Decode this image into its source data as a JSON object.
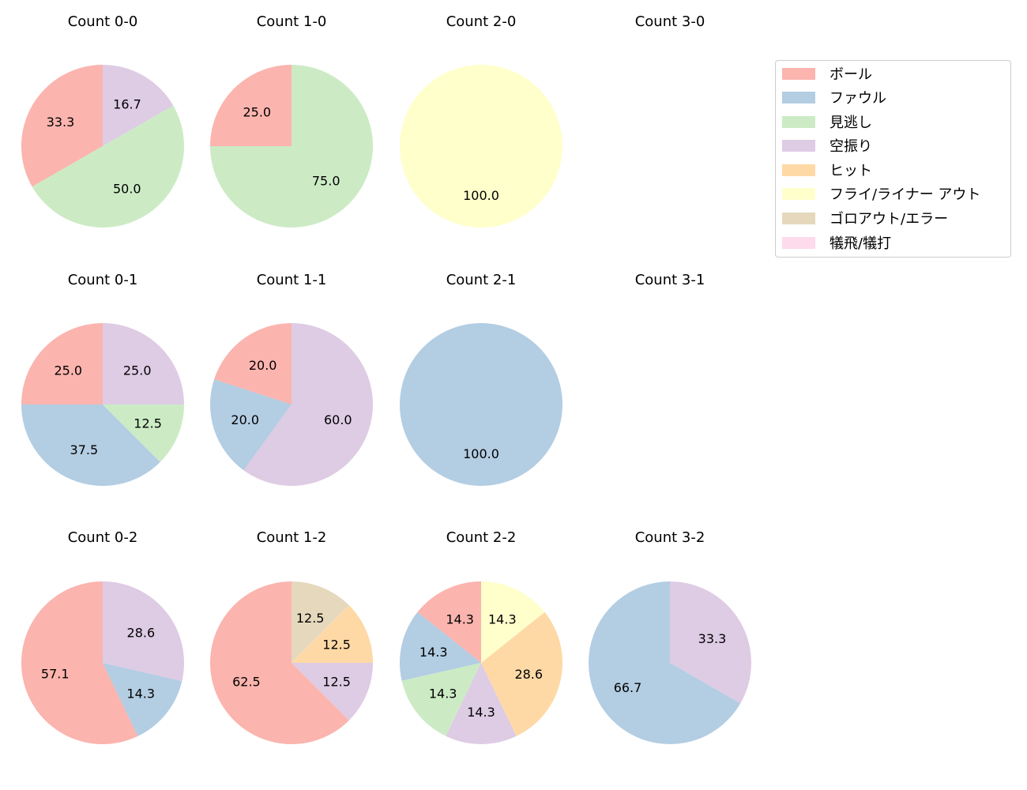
{
  "chart_data": {
    "type": "pie",
    "categories": [
      "ボール",
      "ファウル",
      "見逃し",
      "空振り",
      "ヒット",
      "フライ/ライナー アウト",
      "ゴロアウト/エラー",
      "犠飛/犠打"
    ],
    "colors": [
      "#fbb4ae",
      "#b3cde3",
      "#ccebc5",
      "#decbe4",
      "#fed9a6",
      "#ffffcc",
      "#e5d8bd",
      "#fddaec"
    ],
    "legend_position": "upper right",
    "charts": [
      {
        "title": "Count 0-0",
        "row": 0,
        "col": 0,
        "slices": [
          {
            "category": "ボール",
            "value": 33.3
          },
          {
            "category": "見逃し",
            "value": 50.0
          },
          {
            "category": "空振り",
            "value": 16.7
          }
        ]
      },
      {
        "title": "Count 1-0",
        "row": 0,
        "col": 1,
        "slices": [
          {
            "category": "ボール",
            "value": 25.0
          },
          {
            "category": "見逃し",
            "value": 75.0
          }
        ]
      },
      {
        "title": "Count 2-0",
        "row": 0,
        "col": 2,
        "slices": [
          {
            "category": "フライ/ライナー アウト",
            "value": 100.0
          }
        ]
      },
      {
        "title": "Count 3-0",
        "row": 0,
        "col": 3,
        "slices": []
      },
      {
        "title": "Count 0-1",
        "row": 1,
        "col": 0,
        "slices": [
          {
            "category": "ボール",
            "value": 25.0
          },
          {
            "category": "ファウル",
            "value": 37.5
          },
          {
            "category": "見逃し",
            "value": 12.5
          },
          {
            "category": "空振り",
            "value": 25.0
          }
        ]
      },
      {
        "title": "Count 1-1",
        "row": 1,
        "col": 1,
        "slices": [
          {
            "category": "ボール",
            "value": 20.0
          },
          {
            "category": "ファウル",
            "value": 20.0
          },
          {
            "category": "空振り",
            "value": 60.0
          }
        ]
      },
      {
        "title": "Count 2-1",
        "row": 1,
        "col": 2,
        "slices": [
          {
            "category": "ファウル",
            "value": 100.0
          }
        ]
      },
      {
        "title": "Count 3-1",
        "row": 1,
        "col": 3,
        "slices": []
      },
      {
        "title": "Count 0-2",
        "row": 2,
        "col": 0,
        "slices": [
          {
            "category": "ボール",
            "value": 57.1
          },
          {
            "category": "ファウル",
            "value": 14.3
          },
          {
            "category": "空振り",
            "value": 28.6
          }
        ]
      },
      {
        "title": "Count 1-2",
        "row": 2,
        "col": 1,
        "slices": [
          {
            "category": "ボール",
            "value": 62.5
          },
          {
            "category": "空振り",
            "value": 12.5
          },
          {
            "category": "ヒット",
            "value": 12.5
          },
          {
            "category": "ゴロアウト/エラー",
            "value": 12.5
          }
        ]
      },
      {
        "title": "Count 2-2",
        "row": 2,
        "col": 2,
        "slices": [
          {
            "category": "ボール",
            "value": 14.3
          },
          {
            "category": "ファウル",
            "value": 14.3
          },
          {
            "category": "見逃し",
            "value": 14.3
          },
          {
            "category": "空振り",
            "value": 14.3
          },
          {
            "category": "ヒット",
            "value": 28.6
          },
          {
            "category": "フライ/ライナー アウト",
            "value": 14.3
          }
        ]
      },
      {
        "title": "Count 3-2",
        "row": 2,
        "col": 3,
        "slices": [
          {
            "category": "ファウル",
            "value": 66.7
          },
          {
            "category": "空振り",
            "value": 33.3
          }
        ]
      }
    ]
  },
  "legend": {
    "items": [
      {
        "label": "ボール",
        "color": "#fbb4ae"
      },
      {
        "label": "ファウル",
        "color": "#b3cde3"
      },
      {
        "label": "見逃し",
        "color": "#ccebc5"
      },
      {
        "label": "空振り",
        "color": "#decbe4"
      },
      {
        "label": "ヒット",
        "color": "#fed9a6"
      },
      {
        "label": "フライ/ライナー アウト",
        "color": "#ffffcc"
      },
      {
        "label": "ゴロアウト/エラー",
        "color": "#e5d8bd"
      },
      {
        "label": "犠飛/犠打",
        "color": "#fddaec"
      }
    ]
  }
}
